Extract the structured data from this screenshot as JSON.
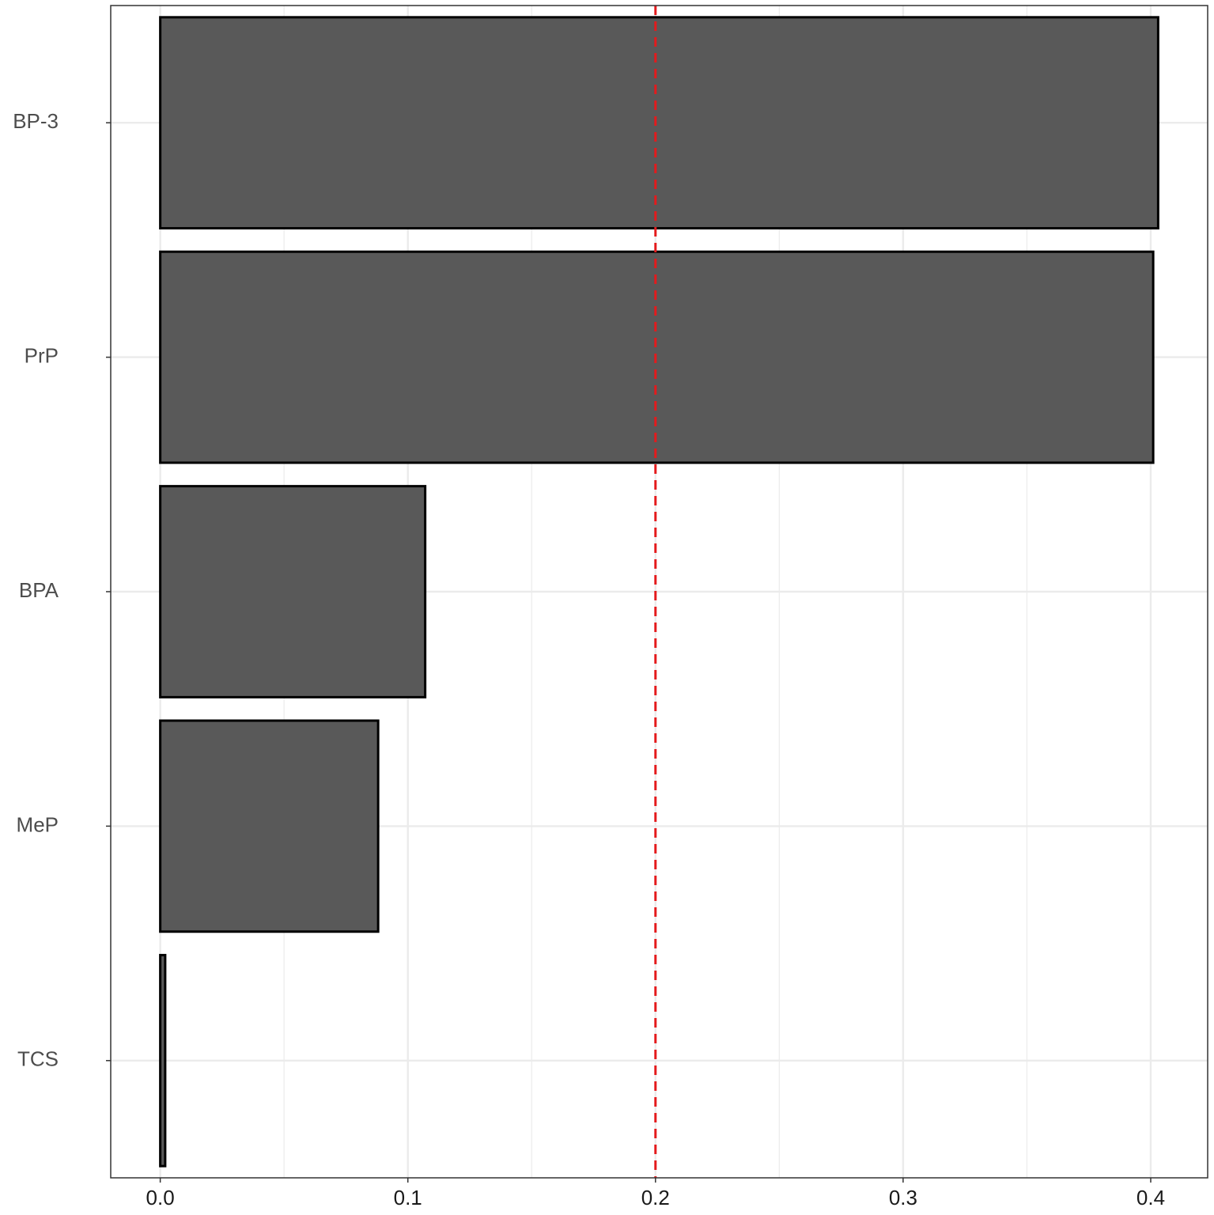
{
  "chart_data": {
    "type": "bar",
    "orientation": "horizontal",
    "categories": [
      "BP-3",
      "PrP",
      "BPA",
      "MeP",
      "TCS"
    ],
    "values": [
      0.403,
      0.401,
      0.107,
      0.088,
      0.002
    ],
    "title": "",
    "xlabel": "",
    "ylabel": "",
    "xlim": [
      -0.02,
      0.423
    ],
    "x_ticks": [
      0.0,
      0.1,
      0.2,
      0.3,
      0.4
    ],
    "x_tick_labels": [
      "0.0",
      "0.1",
      "0.2",
      "0.3",
      "0.4"
    ],
    "reference_line": {
      "value": 0.2,
      "style": "dashed",
      "color": "#e41a1c"
    },
    "bar_fill": "#595959",
    "bar_stroke": "#000000",
    "grid": true,
    "legend": "none"
  }
}
